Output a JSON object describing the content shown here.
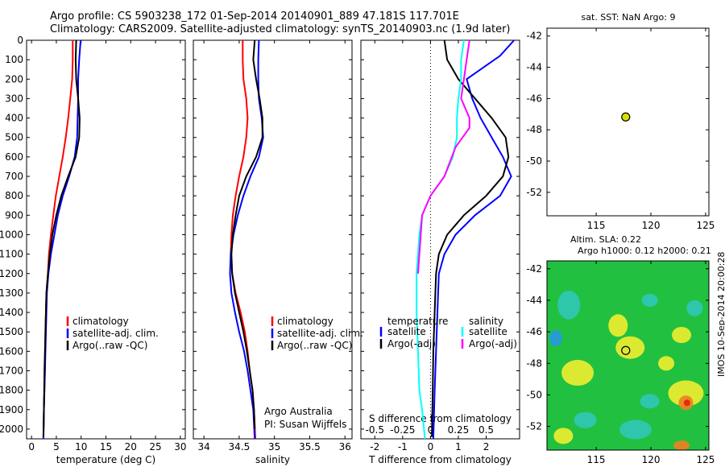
{
  "header": {
    "line1": "Argo profile: CS 5903238_172 01-Sep-2014 20140901_889 47.181S 117.701E",
    "line2": "Climatology: CARS2009. Satellite-adjusted climatology: synTS_20140903.nc (1.9d later)"
  },
  "colors": {
    "climatology": "#ff0000",
    "satellite": "#0000ff",
    "argo": "#000000",
    "salinity_satellite": "#00ffff",
    "salinity_argo": "#ff00ff",
    "float_marker": "#d8e000"
  },
  "chart_data": [
    {
      "id": "temperature",
      "type": "line",
      "xlabel": "temperature (deg C)",
      "ylabel": "",
      "xlim": [
        -1,
        31
      ],
      "ylim": [
        2050,
        0
      ],
      "xticks": [
        0,
        5,
        10,
        15,
        20,
        25,
        30
      ],
      "yticks": [
        0,
        100,
        200,
        300,
        400,
        500,
        600,
        700,
        800,
        900,
        1000,
        1100,
        1200,
        1300,
        1400,
        1500,
        1600,
        1700,
        1800,
        1900,
        2000
      ],
      "legend": [
        "climatology",
        "satellite-adj. clim.",
        "Argo(..raw -QC)"
      ],
      "legend_placement": "lower-right",
      "series": [
        {
          "name": "climatology",
          "color": "#ff0000",
          "points": [
            [
              8.3,
              0
            ],
            [
              8.3,
              100
            ],
            [
              8.2,
              200
            ],
            [
              7.8,
              300
            ],
            [
              7.4,
              400
            ],
            [
              6.9,
              500
            ],
            [
              6.3,
              600
            ],
            [
              5.6,
              700
            ],
            [
              4.9,
              800
            ],
            [
              4.4,
              900
            ],
            [
              3.9,
              1000
            ],
            [
              3.5,
              1100
            ],
            [
              3.3,
              1200
            ],
            [
              3.0,
              1300
            ],
            [
              2.8,
              1500
            ],
            [
              2.7,
              1700
            ],
            [
              2.5,
              1900
            ],
            [
              2.4,
              2050
            ]
          ]
        },
        {
          "name": "satellite-adj. clim.",
          "color": "#0000ff",
          "points": [
            [
              9.9,
              0
            ],
            [
              9.6,
              100
            ],
            [
              9.4,
              200
            ],
            [
              9.4,
              300
            ],
            [
              9.3,
              400
            ],
            [
              9.2,
              500
            ],
            [
              8.7,
              600
            ],
            [
              7.6,
              700
            ],
            [
              6.3,
              800
            ],
            [
              5.3,
              900
            ],
            [
              4.6,
              1000
            ],
            [
              3.9,
              1100
            ],
            [
              3.4,
              1200
            ],
            [
              3.1,
              1300
            ],
            [
              2.9,
              1500
            ],
            [
              2.7,
              1700
            ],
            [
              2.5,
              1900
            ],
            [
              2.4,
              2050
            ]
          ]
        },
        {
          "name": "Argo(..raw -QC)",
          "color": "#000000",
          "points": [
            [
              9.0,
              0
            ],
            [
              8.9,
              100
            ],
            [
              9.0,
              200
            ],
            [
              9.4,
              300
            ],
            [
              9.7,
              400
            ],
            [
              9.6,
              500
            ],
            [
              8.9,
              600
            ],
            [
              7.4,
              700
            ],
            [
              6.0,
              800
            ],
            [
              5.0,
              900
            ],
            [
              4.2,
              1000
            ],
            [
              3.7,
              1100
            ],
            [
              3.3,
              1200
            ],
            [
              3.0,
              1300
            ],
            [
              2.8,
              1500
            ],
            [
              2.6,
              1700
            ],
            [
              2.5,
              1900
            ],
            [
              2.4,
              2040
            ]
          ]
        }
      ],
      "annotations": []
    },
    {
      "id": "salinity",
      "type": "line",
      "xlabel": "salinity",
      "ylabel": "",
      "xlim": [
        33.85,
        36.1
      ],
      "ylim": [
        2050,
        0
      ],
      "xticks": [
        34,
        34.5,
        35,
        35.5,
        36
      ],
      "legend": [
        "climatology",
        "satellite-adj. clim.",
        "Argo(..raw -QC)"
      ],
      "legend_placement": "lower-right",
      "annotations": [
        "Argo Australia",
        "PI: Susan Wijffels"
      ],
      "series": [
        {
          "name": "climatology",
          "color": "#ff0000",
          "points": [
            [
              34.55,
              0
            ],
            [
              34.55,
              100
            ],
            [
              34.56,
              200
            ],
            [
              34.6,
              300
            ],
            [
              34.62,
              400
            ],
            [
              34.6,
              500
            ],
            [
              34.56,
              600
            ],
            [
              34.5,
              700
            ],
            [
              34.45,
              800
            ],
            [
              34.41,
              900
            ],
            [
              34.39,
              1000
            ],
            [
              34.38,
              1100
            ],
            [
              34.4,
              1200
            ],
            [
              34.45,
              1300
            ],
            [
              34.52,
              1400
            ],
            [
              34.58,
              1500
            ],
            [
              34.62,
              1600
            ],
            [
              34.65,
              1700
            ],
            [
              34.69,
              1800
            ],
            [
              34.71,
              1900
            ],
            [
              34.73,
              2050
            ]
          ]
        },
        {
          "name": "satellite-adj. clim.",
          "color": "#0000ff",
          "points": [
            [
              34.78,
              0
            ],
            [
              34.77,
              100
            ],
            [
              34.77,
              200
            ],
            [
              34.78,
              300
            ],
            [
              34.82,
              400
            ],
            [
              34.84,
              500
            ],
            [
              34.78,
              600
            ],
            [
              34.66,
              700
            ],
            [
              34.56,
              800
            ],
            [
              34.48,
              900
            ],
            [
              34.42,
              1000
            ],
            [
              34.38,
              1100
            ],
            [
              34.37,
              1200
            ],
            [
              34.39,
              1300
            ],
            [
              34.44,
              1400
            ],
            [
              34.5,
              1500
            ],
            [
              34.57,
              1600
            ],
            [
              34.62,
              1700
            ],
            [
              34.66,
              1800
            ],
            [
              34.7,
              1900
            ],
            [
              34.72,
              2050
            ]
          ]
        },
        {
          "name": "Argo(..raw -QC)",
          "color": "#000000",
          "points": [
            [
              34.72,
              0
            ],
            [
              34.7,
              100
            ],
            [
              34.74,
              200
            ],
            [
              34.79,
              300
            ],
            [
              34.83,
              400
            ],
            [
              34.83,
              500
            ],
            [
              34.74,
              600
            ],
            [
              34.6,
              700
            ],
            [
              34.5,
              800
            ],
            [
              34.45,
              900
            ],
            [
              34.41,
              1000
            ],
            [
              34.39,
              1100
            ],
            [
              34.4,
              1200
            ],
            [
              34.44,
              1300
            ],
            [
              34.5,
              1400
            ],
            [
              34.56,
              1500
            ],
            [
              34.61,
              1600
            ],
            [
              34.65,
              1700
            ],
            [
              34.69,
              1800
            ],
            [
              34.71,
              1900
            ],
            [
              34.72,
              2000
            ]
          ]
        }
      ]
    },
    {
      "id": "difference",
      "type": "line",
      "xlabel": "T difference from climatology",
      "x2label": "S difference from climatology",
      "xlim": [
        -2.5,
        3.2
      ],
      "x2lim": [
        -0.625,
        0.8
      ],
      "ylim": [
        2050,
        0
      ],
      "xticks": [
        -2,
        -1,
        0,
        1,
        2
      ],
      "x2ticks": [
        "-0.5",
        "-0.25",
        "0",
        "0.25",
        "0.5"
      ],
      "legend_headers": [
        "temperature",
        "salinity"
      ],
      "legend": [
        "satellite",
        "Argo(-adj)",
        "satellite",
        "Argo(-adj)"
      ],
      "legend_placement": "lower-center",
      "series": [
        {
          "name": "satellite",
          "group": "temperature",
          "color": "#0000ff",
          "points": [
            [
              3.0,
              0
            ],
            [
              2.5,
              80
            ],
            [
              1.8,
              150
            ],
            [
              1.3,
              200
            ],
            [
              1.5,
              300
            ],
            [
              1.8,
              400
            ],
            [
              2.2,
              500
            ],
            [
              2.6,
              600
            ],
            [
              2.9,
              700
            ],
            [
              2.5,
              800
            ],
            [
              1.6,
              900
            ],
            [
              0.9,
              1000
            ],
            [
              0.5,
              1100
            ],
            [
              0.3,
              1200
            ],
            [
              0.25,
              1400
            ],
            [
              0.2,
              1600
            ],
            [
              0.15,
              1800
            ],
            [
              0.1,
              2050
            ]
          ]
        },
        {
          "name": "Argo(-adj)",
          "group": "temperature",
          "color": "#000000",
          "points": [
            [
              0.5,
              0
            ],
            [
              0.6,
              100
            ],
            [
              1.0,
              200
            ],
            [
              1.6,
              300
            ],
            [
              2.2,
              400
            ],
            [
              2.7,
              500
            ],
            [
              2.8,
              600
            ],
            [
              2.6,
              700
            ],
            [
              2.0,
              800
            ],
            [
              1.2,
              900
            ],
            [
              0.6,
              1000
            ],
            [
              0.3,
              1100
            ],
            [
              0.2,
              1200
            ],
            [
              0.15,
              1400
            ],
            [
              0.1,
              1600
            ],
            [
              0.08,
              1800
            ],
            [
              0.05,
              2040
            ]
          ]
        },
        {
          "name": "satellite",
          "group": "salinity",
          "color": "#00ffff",
          "points": [
            [
              1.2,
              0
            ],
            [
              1.1,
              100
            ],
            [
              1.1,
              200
            ],
            [
              1.0,
              300
            ],
            [
              0.95,
              400
            ],
            [
              0.95,
              500
            ],
            [
              0.8,
              600
            ],
            [
              0.5,
              700
            ],
            [
              0.0,
              800
            ],
            [
              -0.3,
              900
            ],
            [
              -0.4,
              1000
            ],
            [
              -0.45,
              1100
            ],
            [
              -0.5,
              1200
            ],
            [
              -0.5,
              1400
            ],
            [
              -0.45,
              1600
            ],
            [
              -0.4,
              1800
            ],
            [
              -0.3,
              1900
            ],
            [
              -0.2,
              2050
            ]
          ]
        },
        {
          "name": "Argo(-adj)",
          "group": "salinity",
          "color": "#ff00ff",
          "points": [
            [
              1.4,
              0
            ],
            [
              1.3,
              100
            ],
            [
              1.2,
              200
            ],
            [
              1.1,
              300
            ],
            [
              1.4,
              400
            ],
            [
              1.4,
              450
            ],
            [
              0.9,
              550
            ],
            [
              0.5,
              700
            ],
            [
              0.0,
              800
            ],
            [
              -0.3,
              900
            ],
            [
              -0.35,
              1000
            ],
            [
              -0.4,
              1100
            ],
            [
              -0.45,
              1200
            ]
          ]
        }
      ]
    }
  ],
  "sst_map": {
    "title": "sat. SST: NaN Argo: 9",
    "xlim": [
      110.5,
      125.3
    ],
    "ylim": [
      -53.5,
      -41.5
    ],
    "xticks": [
      115,
      120,
      125
    ],
    "yticks": [
      -42,
      -44,
      -46,
      -48,
      -50,
      -52
    ],
    "float": {
      "lon": 117.7,
      "lat": -47.18
    }
  },
  "sla_map": {
    "title1": "Altim. SLA: 0.22",
    "title2": "Argo h1000: 0.12 h2000: 0.21",
    "xlim": [
      110.5,
      125.3
    ],
    "ylim": [
      -53.5,
      -41.5
    ],
    "xticks": [
      115,
      120,
      125
    ],
    "yticks": [
      -42,
      -44,
      -46,
      -48,
      -50,
      -52
    ],
    "float": {
      "lon": 117.7,
      "lat": -47.18
    },
    "stamp": "IMOS 10-Sep-2014 20:00:28",
    "palette": {
      "green": "#22c040",
      "yellow": "#f0ee30",
      "cyan": "#30c8b8",
      "blue": "#2898e0",
      "orange": "#f08020",
      "red": "#e02010"
    }
  }
}
